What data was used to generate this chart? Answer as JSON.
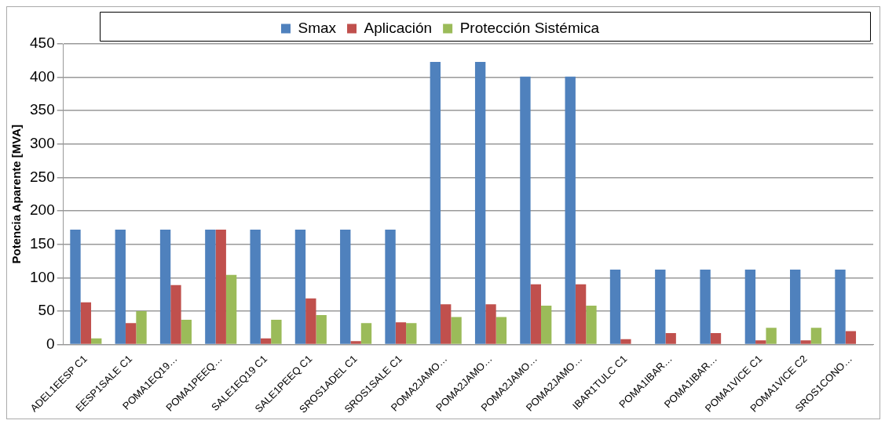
{
  "chart_data": {
    "type": "bar",
    "ylabel": "Potencia Aparente [MVA]",
    "categories": [
      "ADEL1EESP C1",
      "EESP1SALE C1",
      "POMA1EQ19…",
      "POMA1PEEQ…",
      "SALE1EQ19 C1",
      "SALE1PEEQ C1",
      "SROS1ADEL C1",
      "SROS1SALE C1",
      "POMA2JAMO…",
      "POMA2JAMO…",
      "POMA2JAMO…",
      "POMA2JAMO…",
      "IBAR1TULC C1",
      "POMA1IBAR…",
      "POMA1IBAR…",
      "POMA1VICE C1",
      "POMA1VICE C2",
      "SROS1CONO…"
    ],
    "series": [
      {
        "name": "Smax",
        "color": "#4f81bd",
        "values": [
          172,
          172,
          172,
          172,
          172,
          172,
          172,
          172,
          423,
          423,
          401,
          401,
          112,
          112,
          112,
          112,
          112,
          112
        ]
      },
      {
        "name": "Aplicación",
        "color": "#c0504d",
        "values": [
          63,
          32,
          89,
          172,
          9,
          69,
          5,
          33,
          60,
          60,
          90,
          90,
          8,
          17,
          17,
          6,
          6,
          20
        ]
      },
      {
        "name": "Protección Sistémica",
        "color": "#9bbb59",
        "values": [
          9,
          50,
          37,
          104,
          37,
          44,
          32,
          32,
          41,
          41,
          58,
          58,
          0,
          0,
          0,
          25,
          25,
          0
        ]
      }
    ],
    "ylim": [
      0,
      450
    ],
    "yticks": [
      0,
      50,
      100,
      150,
      200,
      250,
      300,
      350,
      400,
      450
    ],
    "grid": "y",
    "legend": "top"
  }
}
